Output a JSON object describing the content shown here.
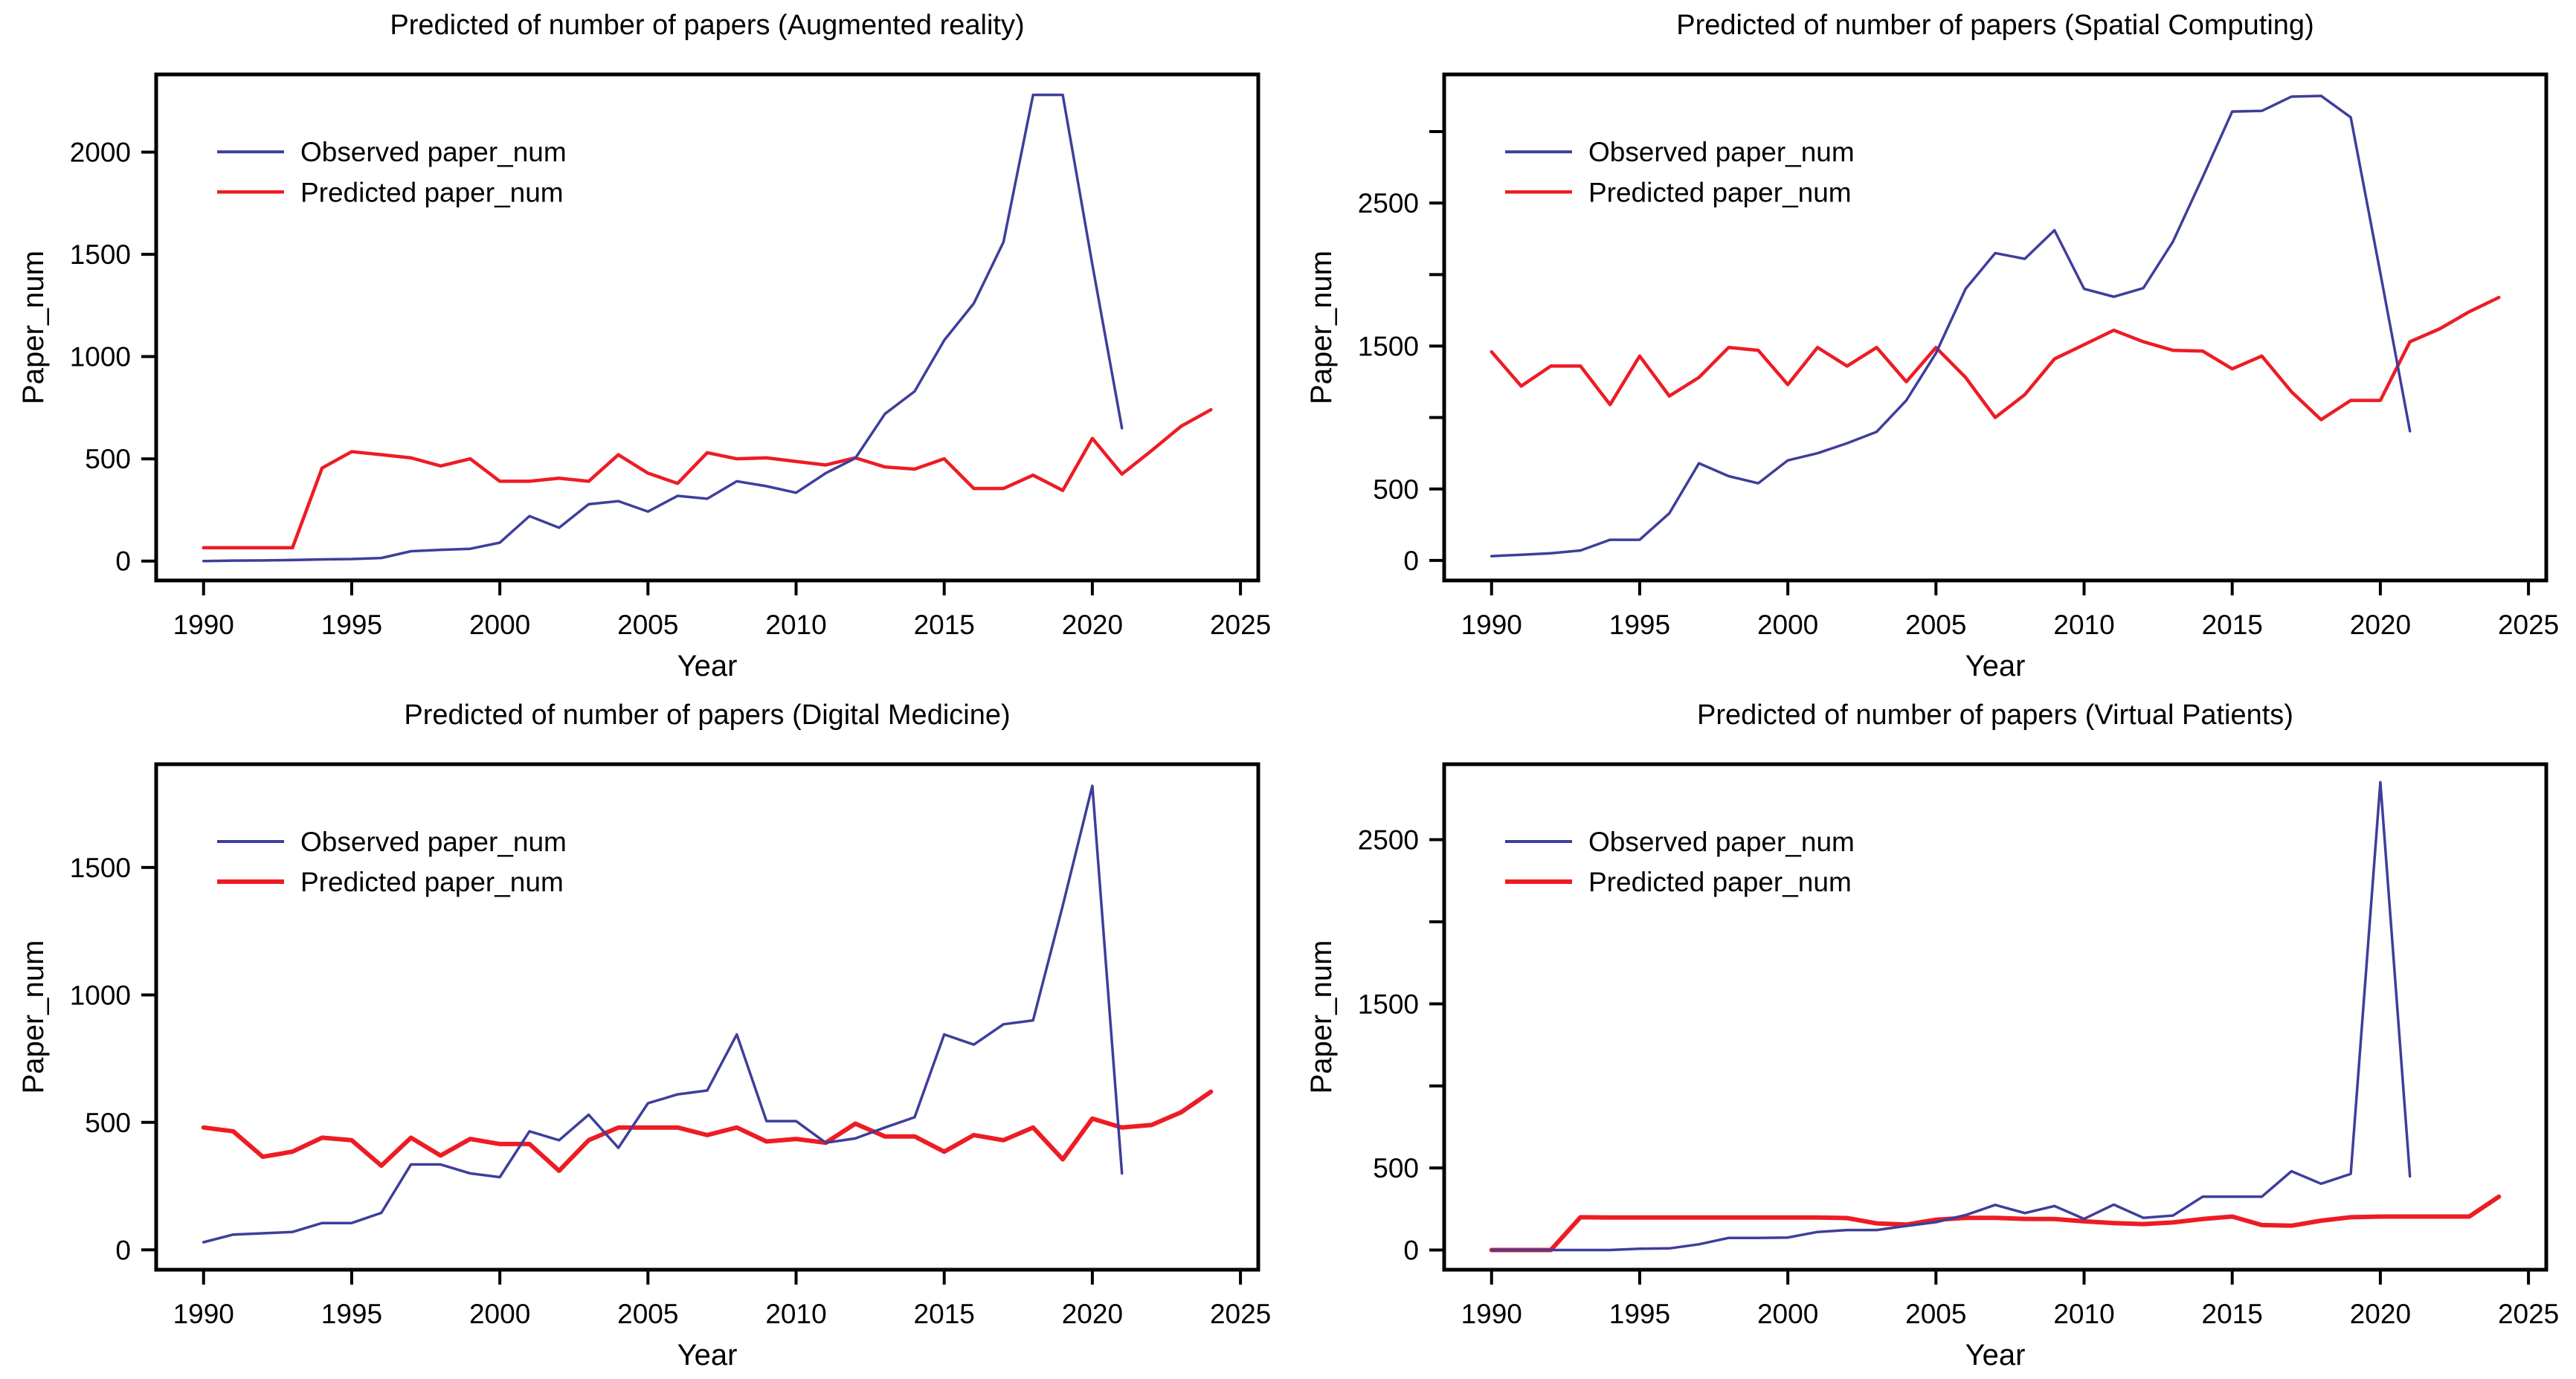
{
  "page": {
    "background": "#ffffff"
  },
  "colors": {
    "observed_line": "#3E3E9B",
    "predicted_line": "#ED1C24",
    "axis": "#000000",
    "text": "#000000"
  },
  "legend": {
    "observed_label": "Observed paper_num",
    "predicted_label": "Predicted paper_num"
  },
  "axes": {
    "xlabel": "Year",
    "ylabel": "Paper_num",
    "x_ticks": [
      1990,
      1995,
      2000,
      2005,
      2010,
      2015,
      2020,
      2025
    ]
  },
  "chart_data": [
    {
      "type": "line",
      "title": "Predicted of number of papers (Augmented reality)",
      "subject": "Augmented reality",
      "xlabel": "Year",
      "ylabel": "Paper_num",
      "legend_position": "top-left",
      "grid": false,
      "ylim": [
        -95,
        2380
      ],
      "y_ticks": [
        0,
        500,
        1000,
        1500,
        2000
      ],
      "y_tick_labels_shown": [
        0,
        500,
        1000,
        1500,
        2000
      ],
      "observed_years": [
        1990,
        1991,
        1992,
        1993,
        1994,
        1995,
        1996,
        1997,
        1998,
        1999,
        2000,
        2001,
        2002,
        2003,
        2004,
        2005,
        2006,
        2007,
        2008,
        2009,
        2010,
        2011,
        2012,
        2013,
        2014,
        2015,
        2016,
        2017,
        2018,
        2019,
        2020,
        2021
      ],
      "series": [
        {
          "name": "Observed paper_num",
          "values": [
            0,
            2,
            3,
            5,
            8,
            10,
            15,
            48,
            55,
            60,
            90,
            220,
            163,
            278,
            293,
            242,
            319,
            305,
            390,
            366,
            334,
            430,
            503,
            720,
            830,
            1080,
            1260,
            1560,
            2280,
            2280,
            1450,
            650
          ],
          "line_width": 3.5
        },
        {
          "name": "Predicted paper_num",
          "values": [
            65,
            65,
            65,
            65,
            455,
            535,
            520,
            505,
            465,
            500,
            390,
            390,
            405,
            390,
            520,
            430,
            380,
            530,
            500,
            505,
            487,
            470,
            505,
            460,
            450,
            500,
            355,
            355,
            420,
            345,
            600,
            425,
            540,
            660,
            740
          ],
          "line_width": 4.5
        }
      ],
      "predicted_years": [
        1990,
        1991,
        1992,
        1993,
        1994,
        1995,
        1996,
        1997,
        1998,
        1999,
        2000,
        2001,
        2002,
        2003,
        2004,
        2005,
        2006,
        2007,
        2008,
        2009,
        2010,
        2011,
        2012,
        2013,
        2014,
        2015,
        2016,
        2017,
        2018,
        2019,
        2020,
        2021,
        2022,
        2023,
        2024
      ]
    },
    {
      "type": "line",
      "title": "Predicted of number of papers (Spatial Computing)",
      "subject": "Spatial Computing",
      "xlabel": "Year",
      "ylabel": "Paper_num",
      "legend_position": "top-left",
      "grid": false,
      "ylim": [
        -140,
        3400
      ],
      "y_ticks": [
        0,
        500,
        1000,
        1500,
        2000,
        2500,
        3000
      ],
      "y_tick_labels_shown": [
        0,
        500,
        1500,
        2500
      ],
      "observed_years": [
        1990,
        1991,
        1992,
        1993,
        1994,
        1995,
        1996,
        1997,
        1998,
        1999,
        2000,
        2001,
        2002,
        2003,
        2004,
        2005,
        2006,
        2007,
        2008,
        2009,
        2010,
        2011,
        2012,
        2013,
        2014,
        2015,
        2016,
        2017,
        2018,
        2019,
        2020,
        2021
      ],
      "series": [
        {
          "name": "Observed paper_num",
          "values": [
            30,
            40,
            50,
            70,
            145,
            145,
            330,
            680,
            590,
            540,
            700,
            750,
            820,
            900,
            1120,
            1450,
            1900,
            2150,
            2110,
            2310,
            1900,
            1845,
            1905,
            2230,
            2680,
            3140,
            3145,
            3245,
            3250,
            3100,
            2010,
            905
          ],
          "line_width": 3.5
        },
        {
          "name": "Predicted paper_num",
          "values": [
            1460,
            1220,
            1360,
            1360,
            1090,
            1430,
            1150,
            1280,
            1490,
            1470,
            1230,
            1490,
            1360,
            1490,
            1250,
            1490,
            1280,
            1000,
            1160,
            1410,
            1510,
            1610,
            1530,
            1470,
            1465,
            1340,
            1430,
            1180,
            985,
            1120,
            1120,
            1530,
            1620,
            1740,
            1840
          ],
          "line_width": 4.5
        }
      ],
      "predicted_years": [
        1990,
        1991,
        1992,
        1993,
        1994,
        1995,
        1996,
        1997,
        1998,
        1999,
        2000,
        2001,
        2002,
        2003,
        2004,
        2005,
        2006,
        2007,
        2008,
        2009,
        2010,
        2011,
        2012,
        2013,
        2014,
        2015,
        2016,
        2017,
        2018,
        2019,
        2020,
        2021,
        2022,
        2023,
        2024
      ]
    },
    {
      "type": "line",
      "title": "Predicted of number of papers (Digital Medicine)",
      "subject": "Digital Medicine",
      "xlabel": "Year",
      "ylabel": "Paper_num",
      "legend_position": "top-left",
      "grid": false,
      "ylim": [
        -78,
        1905
      ],
      "y_ticks": [
        0,
        500,
        1000,
        1500
      ],
      "y_tick_labels_shown": [
        0,
        500,
        1000,
        1500
      ],
      "observed_years": [
        1990,
        1991,
        1992,
        1993,
        1994,
        1995,
        1996,
        1997,
        1998,
        1999,
        2000,
        2001,
        2002,
        2003,
        2004,
        2005,
        2006,
        2007,
        2008,
        2009,
        2010,
        2011,
        2012,
        2013,
        2014,
        2015,
        2016,
        2017,
        2018,
        2019,
        2020,
        2021
      ],
      "series": [
        {
          "name": "Observed paper_num",
          "values": [
            30,
            60,
            65,
            70,
            105,
            105,
            145,
            335,
            335,
            300,
            285,
            465,
            430,
            530,
            400,
            575,
            610,
            625,
            845,
            505,
            505,
            420,
            437,
            480,
            520,
            845,
            805,
            885,
            900,
            1350,
            1820,
            300
          ],
          "line_width": 3.5
        },
        {
          "name": "Predicted paper_num",
          "values": [
            480,
            465,
            365,
            385,
            440,
            430,
            330,
            440,
            370,
            435,
            415,
            415,
            310,
            430,
            480,
            480,
            480,
            450,
            480,
            425,
            435,
            420,
            495,
            445,
            445,
            385,
            450,
            430,
            480,
            355,
            515,
            480,
            490,
            540,
            620
          ],
          "line_width": 6
        }
      ],
      "predicted_years": [
        1990,
        1991,
        1992,
        1993,
        1994,
        1995,
        1996,
        1997,
        1998,
        1999,
        2000,
        2001,
        2002,
        2003,
        2004,
        2005,
        2006,
        2007,
        2008,
        2009,
        2010,
        2011,
        2012,
        2013,
        2014,
        2015,
        2016,
        2017,
        2018,
        2019,
        2020,
        2021,
        2022,
        2023,
        2024
      ]
    },
    {
      "type": "line",
      "title": "Predicted of number of papers (Virtual Patients)",
      "subject": "Virtual Patients",
      "xlabel": "Year",
      "ylabel": "Paper_num",
      "legend_position": "top-left",
      "grid": false,
      "ylim": [
        -120,
        2960
      ],
      "y_ticks": [
        0,
        500,
        1000,
        1500,
        2000,
        2500
      ],
      "y_tick_labels_shown": [
        0,
        500,
        1500,
        2500
      ],
      "observed_years": [
        1990,
        1991,
        1992,
        1993,
        1994,
        1995,
        1996,
        1997,
        1998,
        1999,
        2000,
        2001,
        2002,
        2003,
        2004,
        2005,
        2006,
        2007,
        2008,
        2009,
        2010,
        2011,
        2012,
        2013,
        2014,
        2015,
        2016,
        2017,
        2018,
        2019,
        2020,
        2021
      ],
      "series": [
        {
          "name": "Observed paper_num",
          "values": [
            0,
            0,
            0,
            0,
            0,
            8,
            10,
            35,
            74,
            74,
            76,
            110,
            122,
            122,
            147,
            170,
            213,
            275,
            225,
            268,
            190,
            277,
            196,
            210,
            325,
            325,
            325,
            480,
            404,
            464,
            2850,
            449
          ],
          "line_width": 3.5
        },
        {
          "name": "Predicted paper_num",
          "values": [
            0,
            0,
            0,
            200,
            198,
            198,
            198,
            198,
            198,
            198,
            198,
            198,
            195,
            162,
            155,
            185,
            196,
            196,
            190,
            189,
            175,
            164,
            158,
            168,
            189,
            204,
            152,
            148,
            179,
            200,
            204,
            204,
            204,
            204,
            325
          ],
          "line_width": 6
        }
      ],
      "predicted_years": [
        1990,
        1991,
        1992,
        1993,
        1994,
        1995,
        1996,
        1997,
        1998,
        1999,
        2000,
        2001,
        2002,
        2003,
        2004,
        2005,
        2006,
        2007,
        2008,
        2009,
        2010,
        2011,
        2012,
        2013,
        2014,
        2015,
        2016,
        2017,
        2018,
        2019,
        2020,
        2021,
        2022,
        2023,
        2024
      ]
    }
  ]
}
